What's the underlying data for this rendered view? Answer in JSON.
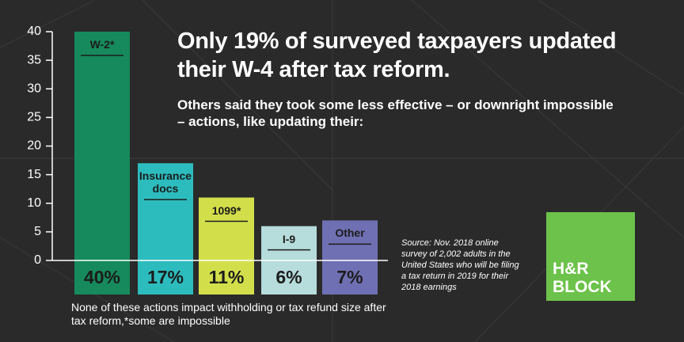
{
  "chart_data": {
    "type": "bar",
    "title": "Only 19% of surveyed taxpayers updated their W-4 after tax reform.",
    "subtitle": "Others said they took some less effective – or downright impossible – actions, like updating their:",
    "categories": [
      "W-2*",
      "Insurance docs",
      "1099*",
      "I-9",
      "Other"
    ],
    "values": [
      40,
      17,
      11,
      6,
      7
    ],
    "value_labels": [
      "40%",
      "17%",
      "11%",
      "6%",
      "7%"
    ],
    "colors": [
      "#168a5c",
      "#2cbcbe",
      "#d3df4a",
      "#b6dcdc",
      "#6f70b3"
    ],
    "ylim": [
      0,
      40
    ],
    "yticks": [
      0,
      5,
      10,
      15,
      20,
      25,
      30,
      35,
      40
    ],
    "footnote": "None of these actions impact withholding or tax refund size after tax reform,*some are impossible",
    "source": "Source: Nov. 2018 online survey of 2,002 adults in the United States who will be filing a tax return in 2019 for their 2018 earnings",
    "logo": "H&R BLOCK"
  }
}
